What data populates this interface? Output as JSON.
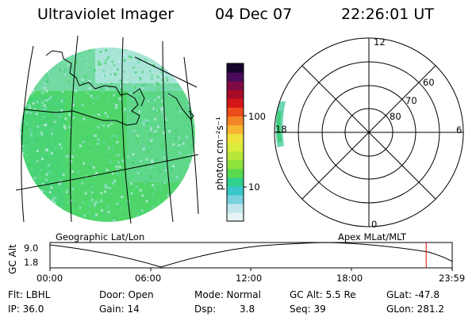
{
  "header": {
    "instrument": "Ultraviolet Imager",
    "date": "04 Dec 07",
    "time": "22:26:01 UT"
  },
  "colorbar": {
    "unit_label": "photon cm⁻²s⁻¹",
    "ticks": [
      "100",
      "10"
    ],
    "colors": [
      "#e6f4f6",
      "#c0e6ec",
      "#79d1dc",
      "#38c7c6",
      "#2fd08f",
      "#59da4d",
      "#8ee23c",
      "#b9e63b",
      "#dcec3c",
      "#f1e23b",
      "#f7b531",
      "#f48524",
      "#ec4b1b",
      "#d21517",
      "#a80c24",
      "#7d0a44",
      "#4a0a5a",
      "#17062b"
    ]
  },
  "geo_panel": {
    "label": "Geographic Lat/Lon",
    "dominant_color": "#4fd66a",
    "edge_color": "#9fe0e6"
  },
  "polar_panel": {
    "label": "Apex MLat/MLT",
    "mlt_labels": {
      "top": "12",
      "right": "6",
      "bottom": "0",
      "left": "18"
    },
    "lat_labels": [
      "80",
      "70",
      "60"
    ]
  },
  "timeline": {
    "ylabel": "GC Alt",
    "y_ticks": [
      "9.0",
      "1.8"
    ],
    "x_ticks": [
      "00:00",
      "06:00",
      "12:00",
      "18:00",
      "23:59"
    ],
    "current_marker_hours": 22.43,
    "marker_color": "#e00000"
  },
  "info": {
    "flt": "Flt: LBHL",
    "ip": "IP: 36.0",
    "door": "Door: Open",
    "gain": "Gain: 14",
    "mode": "Mode: Normal",
    "dsp_label": "Dsp:",
    "dsp_value": "3.8",
    "gcalt": "GC Alt: 5.5 Re",
    "seq": "Seq: 39",
    "glat": "GLat: -47.8",
    "glon": "GLon: 281.2"
  }
}
